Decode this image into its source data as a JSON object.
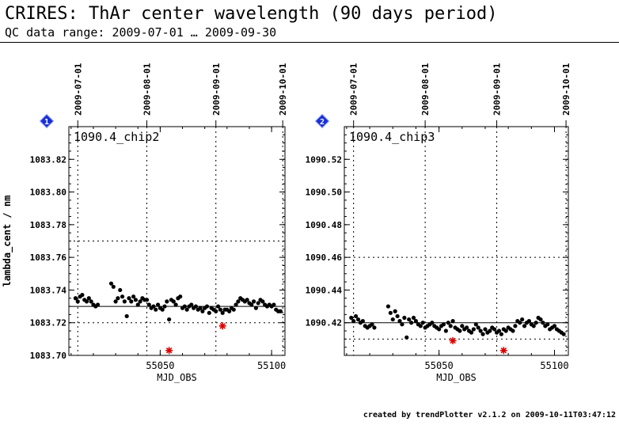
{
  "header": {
    "title": "CRIRES: ThAr center wavelength (90 days period)",
    "subtitle": "QC data range: 2009-07-01 … 2009-09-30"
  },
  "footer": {
    "text": "created by trendPlotter v2.1.2 on 2009-10-11T03:47:12"
  },
  "colors": {
    "point": "#000000",
    "outlier": "#dd0000",
    "badge": "#1a2fd6"
  },
  "chart_data": [
    {
      "type": "scatter",
      "badge": "1",
      "panel_label": "1090.4_chip2",
      "xlabel": "MJD_OBS",
      "ylabel": "lambda_cent / nm",
      "xlim": [
        55009,
        55106
      ],
      "ylim": [
        1083.7,
        1083.84
      ],
      "x_ticks": [
        55050,
        55100
      ],
      "y_ticks": [
        1083.7,
        1083.72,
        1083.74,
        1083.76,
        1083.78,
        1083.8,
        1083.82
      ],
      "date_ticks": [
        {
          "label": "2009-07-01",
          "mjd": 55013
        },
        {
          "label": "2009-08-01",
          "mjd": 55044
        },
        {
          "label": "2009-09-01",
          "mjd": 55075
        },
        {
          "label": "2009-10-01",
          "mjd": 55105
        }
      ],
      "reference_line": 1083.73,
      "threshold_lines": [
        1083.77,
        1083.72
      ],
      "points_x": [
        55012,
        55013,
        55014,
        55015,
        55016,
        55017,
        55018,
        55019,
        55020,
        55021,
        55022,
        55028,
        55029,
        55030,
        55031,
        55032,
        55033,
        55034,
        55035,
        55036,
        55037,
        55038,
        55039,
        55040,
        55041,
        55042,
        55043,
        55044,
        55045,
        55046,
        55047,
        55048,
        55049,
        55050,
        55051,
        55052,
        55053,
        55054,
        55055,
        55056,
        55057,
        55058,
        55059,
        55060,
        55061,
        55062,
        55063,
        55064,
        55065,
        55066,
        55067,
        55068,
        55069,
        55070,
        55071,
        55072,
        55073,
        55074,
        55075,
        55076,
        55077,
        55078,
        55079,
        55080,
        55081,
        55082,
        55083,
        55084,
        55085,
        55086,
        55087,
        55088,
        55089,
        55090,
        55091,
        55092,
        55093,
        55094,
        55095,
        55096,
        55097,
        55098,
        55099,
        55100,
        55101,
        55102,
        55103,
        55104
      ],
      "points_y": [
        1083.735,
        1083.733,
        1083.736,
        1083.737,
        1083.734,
        1083.733,
        1083.735,
        1083.733,
        1083.731,
        1083.73,
        1083.731,
        1083.744,
        1083.742,
        1083.733,
        1083.735,
        1083.74,
        1083.736,
        1083.733,
        1083.724,
        1083.735,
        1083.733,
        1083.736,
        1083.734,
        1083.731,
        1083.733,
        1083.735,
        1083.734,
        1083.734,
        1083.731,
        1083.729,
        1083.73,
        1083.728,
        1083.731,
        1083.729,
        1083.728,
        1083.73,
        1083.733,
        1083.722,
        1083.734,
        1083.733,
        1083.731,
        1083.735,
        1083.736,
        1083.729,
        1083.73,
        1083.728,
        1083.73,
        1083.731,
        1083.729,
        1083.73,
        1083.728,
        1083.729,
        1083.727,
        1083.729,
        1083.73,
        1083.726,
        1083.729,
        1083.728,
        1083.727,
        1083.73,
        1083.728,
        1083.726,
        1083.728,
        1083.728,
        1083.727,
        1083.729,
        1083.728,
        1083.731,
        1083.733,
        1083.735,
        1083.734,
        1083.733,
        1083.734,
        1083.732,
        1083.731,
        1083.733,
        1083.729,
        1083.732,
        1083.734,
        1083.733,
        1083.731,
        1083.73,
        1083.731,
        1083.73,
        1083.731,
        1083.728,
        1083.727,
        1083.727
      ],
      "outliers_x": [
        55054,
        55078
      ],
      "outliers_y": [
        1083.703,
        1083.718
      ]
    },
    {
      "type": "scatter",
      "badge": "2",
      "panel_label": "1090.4_chip3",
      "xlabel": "MJD_OBS",
      "ylabel": "",
      "xlim": [
        55009,
        55106
      ],
      "ylim": [
        1090.4,
        1090.54
      ],
      "x_ticks": [
        55050,
        55100
      ],
      "y_ticks": [
        1090.42,
        1090.44,
        1090.46,
        1090.48,
        1090.5,
        1090.52
      ],
      "date_ticks": [
        {
          "label": "2009-07-01",
          "mjd": 55013
        },
        {
          "label": "2009-08-01",
          "mjd": 55044
        },
        {
          "label": "2009-09-01",
          "mjd": 55075
        },
        {
          "label": "2009-10-01",
          "mjd": 55105
        }
      ],
      "reference_line": 1090.42,
      "threshold_lines": [
        1090.46,
        1090.41
      ],
      "points_x": [
        55012,
        55013,
        55014,
        55015,
        55016,
        55017,
        55018,
        55019,
        55020,
        55021,
        55022,
        55028,
        55029,
        55030,
        55031,
        55032,
        55033,
        55034,
        55035,
        55036,
        55037,
        55038,
        55039,
        55040,
        55041,
        55042,
        55043,
        55044,
        55045,
        55046,
        55047,
        55048,
        55049,
        55050,
        55051,
        55052,
        55053,
        55054,
        55055,
        55056,
        55057,
        55058,
        55059,
        55060,
        55061,
        55062,
        55063,
        55064,
        55065,
        55066,
        55067,
        55068,
        55069,
        55070,
        55071,
        55072,
        55073,
        55074,
        55075,
        55076,
        55077,
        55078,
        55079,
        55080,
        55081,
        55082,
        55083,
        55084,
        55085,
        55086,
        55087,
        55088,
        55089,
        55090,
        55091,
        55092,
        55093,
        55094,
        55095,
        55096,
        55097,
        55098,
        55099,
        55100,
        55101,
        55102,
        55103,
        55104
      ],
      "points_y": [
        1090.423,
        1090.421,
        1090.424,
        1090.422,
        1090.42,
        1090.421,
        1090.418,
        1090.417,
        1090.418,
        1090.419,
        1090.417,
        1090.43,
        1090.426,
        1090.422,
        1090.427,
        1090.424,
        1090.421,
        1090.419,
        1090.423,
        1090.411,
        1090.422,
        1090.42,
        1090.423,
        1090.421,
        1090.419,
        1090.418,
        1090.42,
        1090.417,
        1090.418,
        1090.419,
        1090.42,
        1090.418,
        1090.417,
        1090.416,
        1090.418,
        1090.419,
        1090.415,
        1090.42,
        1090.418,
        1090.421,
        1090.417,
        1090.416,
        1090.415,
        1090.418,
        1090.416,
        1090.417,
        1090.415,
        1090.414,
        1090.416,
        1090.419,
        1090.417,
        1090.415,
        1090.413,
        1090.416,
        1090.414,
        1090.415,
        1090.417,
        1090.416,
        1090.414,
        1090.415,
        1090.413,
        1090.416,
        1090.415,
        1090.417,
        1090.416,
        1090.415,
        1090.418,
        1090.421,
        1090.42,
        1090.422,
        1090.418,
        1090.42,
        1090.421,
        1090.419,
        1090.418,
        1090.42,
        1090.423,
        1090.422,
        1090.42,
        1090.418,
        1090.419,
        1090.416,
        1090.417,
        1090.418,
        1090.416,
        1090.415,
        1090.414,
        1090.413
      ],
      "outliers_x": [
        55056,
        55078
      ],
      "outliers_y": [
        1090.409,
        1090.403
      ]
    }
  ]
}
